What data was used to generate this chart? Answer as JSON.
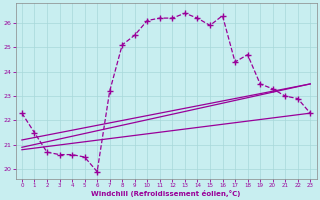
{
  "xlabel": "Windchill (Refroidissement éolien,°C)",
  "bg_color": "#c8eef0",
  "grid_color": "#a8d8da",
  "line_color": "#990099",
  "xlim": [
    -0.5,
    23.5
  ],
  "ylim": [
    19.6,
    26.8
  ],
  "xticks": [
    0,
    1,
    2,
    3,
    4,
    5,
    6,
    7,
    8,
    9,
    10,
    11,
    12,
    13,
    14,
    15,
    16,
    17,
    18,
    19,
    20,
    21,
    22,
    23
  ],
  "yticks": [
    20,
    21,
    22,
    23,
    24,
    25,
    26
  ],
  "curve_main_x": [
    0,
    1,
    2,
    3,
    4,
    5,
    6,
    7,
    8,
    9,
    10,
    11,
    12,
    13,
    14,
    15,
    16,
    17,
    18,
    19,
    20,
    21,
    22,
    23
  ],
  "curve_main_y": [
    22.3,
    21.5,
    20.7,
    20.6,
    20.6,
    20.5,
    19.9,
    23.2,
    25.1,
    25.5,
    26.1,
    26.2,
    26.2,
    26.4,
    26.2,
    25.9,
    26.3,
    24.4,
    24.7,
    23.5,
    23.3,
    23.0,
    22.9,
    22.3
  ],
  "curve_line1_x": [
    0,
    23
  ],
  "curve_line1_y": [
    20.8,
    22.3
  ],
  "curve_line2_x": [
    0,
    23
  ],
  "curve_line2_y": [
    20.9,
    23.5
  ],
  "curve_line3_x": [
    0,
    23
  ],
  "curve_line3_y": [
    21.2,
    23.5
  ]
}
